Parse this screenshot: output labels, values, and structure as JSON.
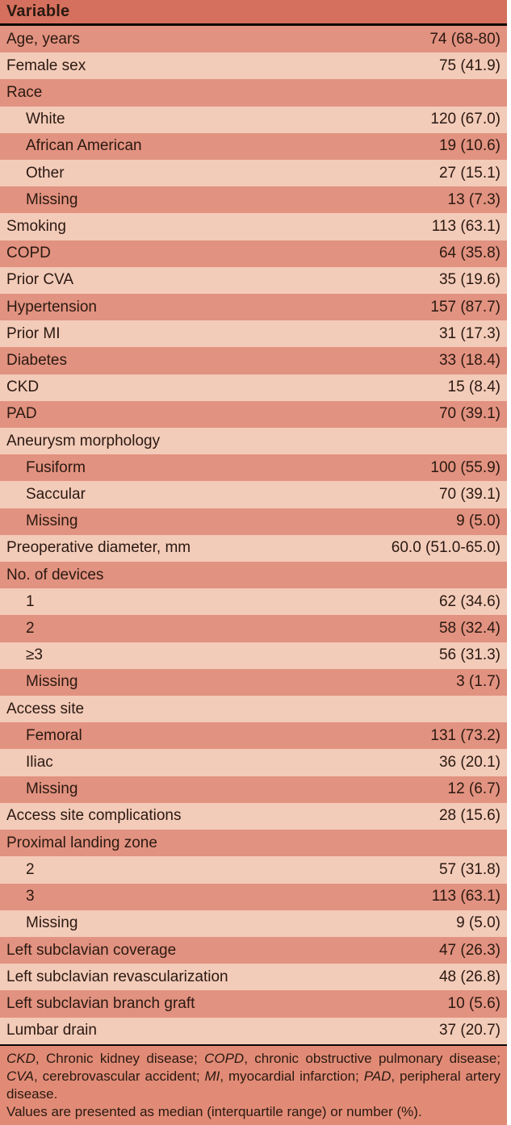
{
  "colors": {
    "header_bg": "#d4705d",
    "row_dark": "#e29280",
    "row_light": "#f3cbb9",
    "footnote_bg": "#e18b76",
    "rule": "#0b0604",
    "text": "#2a1911"
  },
  "table": {
    "header": "Variable",
    "rows": [
      {
        "label": "Age, years",
        "value": "74 (68-80)",
        "indent": false
      },
      {
        "label": "Female sex",
        "value": "75 (41.9)",
        "indent": false
      },
      {
        "label": "Race",
        "value": "",
        "indent": false
      },
      {
        "label": "White",
        "value": "120 (67.0)",
        "indent": true
      },
      {
        "label": "African American",
        "value": "19 (10.6)",
        "indent": true
      },
      {
        "label": "Other",
        "value": "27 (15.1)",
        "indent": true
      },
      {
        "label": "Missing",
        "value": "13 (7.3)",
        "indent": true
      },
      {
        "label": "Smoking",
        "value": "113 (63.1)",
        "indent": false
      },
      {
        "label": "COPD",
        "value": "64 (35.8)",
        "indent": false
      },
      {
        "label": "Prior CVA",
        "value": "35 (19.6)",
        "indent": false
      },
      {
        "label": "Hypertension",
        "value": "157 (87.7)",
        "indent": false
      },
      {
        "label": "Prior MI",
        "value": "31 (17.3)",
        "indent": false
      },
      {
        "label": "Diabetes",
        "value": "33 (18.4)",
        "indent": false
      },
      {
        "label": "CKD",
        "value": "15 (8.4)",
        "indent": false
      },
      {
        "label": "PAD",
        "value": "70 (39.1)",
        "indent": false
      },
      {
        "label": "Aneurysm morphology",
        "value": "",
        "indent": false
      },
      {
        "label": "Fusiform",
        "value": "100 (55.9)",
        "indent": true
      },
      {
        "label": "Saccular",
        "value": "70 (39.1)",
        "indent": true
      },
      {
        "label": "Missing",
        "value": "9 (5.0)",
        "indent": true
      },
      {
        "label": "Preoperative diameter, mm",
        "value": "60.0 (51.0-65.0)",
        "indent": false
      },
      {
        "label": "No. of devices",
        "value": "",
        "indent": false
      },
      {
        "label": "1",
        "value": "62 (34.6)",
        "indent": true
      },
      {
        "label": "2",
        "value": "58 (32.4)",
        "indent": true
      },
      {
        "label": "≥3",
        "value": "56 (31.3)",
        "indent": true
      },
      {
        "label": "Missing",
        "value": "3 (1.7)",
        "indent": true
      },
      {
        "label": "Access site",
        "value": "",
        "indent": false
      },
      {
        "label": "Femoral",
        "value": "131 (73.2)",
        "indent": true
      },
      {
        "label": "Iliac",
        "value": "36 (20.1)",
        "indent": true
      },
      {
        "label": "Missing",
        "value": "12 (6.7)",
        "indent": true
      },
      {
        "label": "Access site complications",
        "value": "28 (15.6)",
        "indent": false
      },
      {
        "label": "Proximal landing zone",
        "value": "",
        "indent": false
      },
      {
        "label": "2",
        "value": "57 (31.8)",
        "indent": true
      },
      {
        "label": "3",
        "value": "113 (63.1)",
        "indent": true
      },
      {
        "label": "Missing",
        "value": "9 (5.0)",
        "indent": true
      },
      {
        "label": "Left subclavian coverage",
        "value": "47 (26.3)",
        "indent": false
      },
      {
        "label": "Left subclavian revascularization",
        "value": "48 (26.8)",
        "indent": false
      },
      {
        "label": "Left subclavian branch graft",
        "value": "10 (5.6)",
        "indent": false
      },
      {
        "label": "Lumbar drain",
        "value": "37 (20.7)",
        "indent": false
      }
    ]
  },
  "footnote": {
    "abbreviation_segments": [
      {
        "text": "CKD",
        "italic": true
      },
      {
        "text": ", Chronic kidney disease; ",
        "italic": false
      },
      {
        "text": "COPD",
        "italic": true
      },
      {
        "text": ", chronic obstructive pulmonary disease; ",
        "italic": false
      },
      {
        "text": "CVA",
        "italic": true
      },
      {
        "text": ", cerebrovascular accident; ",
        "italic": false
      },
      {
        "text": "MI",
        "italic": true
      },
      {
        "text": ", myocardial infarction; ",
        "italic": false
      },
      {
        "text": "PAD",
        "italic": true
      },
      {
        "text": ", peripheral artery disease.",
        "italic": false
      }
    ],
    "values_note": "Values are presented as median (interquartile range) or number (%)."
  }
}
